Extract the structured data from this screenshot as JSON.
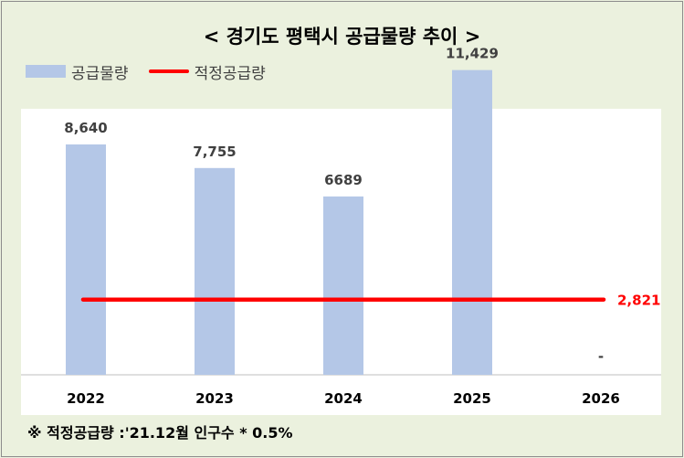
{
  "title": "< 경기도 평택시 공급물량 추이 >",
  "legend": {
    "bar_label": "공급물량",
    "line_label": "적정공급량"
  },
  "colors": {
    "bar": "#b4c7e7",
    "line": "#ff0000",
    "background": "#ebf1de",
    "plot_background": "#ffffff"
  },
  "chart_data": {
    "type": "bar",
    "title": "< 경기도 평택시 공급물량 추이 >",
    "categories": [
      "2022",
      "2023",
      "2024",
      "2025",
      "2026"
    ],
    "series": [
      {
        "name": "공급물량",
        "values": [
          8640,
          7755,
          6689,
          11429,
          0
        ]
      },
      {
        "name": "적정공급량",
        "type": "line",
        "values": [
          2821,
          2821,
          2821,
          2821,
          2821
        ]
      }
    ],
    "data_labels": [
      "8,640",
      "7,755",
      "6689",
      "11,429",
      "-"
    ],
    "line_label": "2,821",
    "ylim": [
      0,
      12000
    ],
    "grid": false,
    "legend_position": "top-left"
  },
  "footnote": "※ 적정공급량 :'21.12월 인구수 * 0.5%"
}
